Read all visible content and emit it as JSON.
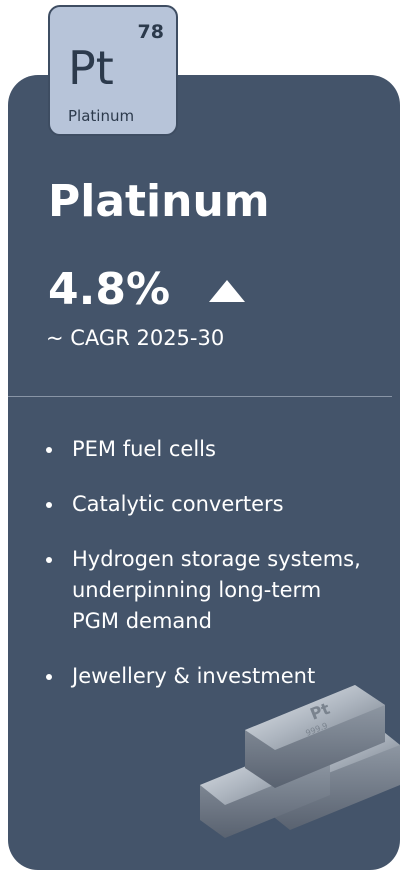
{
  "tile": {
    "number": "78",
    "symbol": "Pt",
    "name": "Platinum"
  },
  "title": "Platinum",
  "stat": "4.8%",
  "stat_label": "~ CAGR 2025-30",
  "bullets": [
    "PEM fuel cells",
    "Catalytic converters",
    "Hydrogen storage systems, underpinning long-term PGM demand",
    "Jewellery & investment"
  ],
  "image": {
    "stamp_symbol": "Pt",
    "stamp_purity": "999.9"
  }
}
